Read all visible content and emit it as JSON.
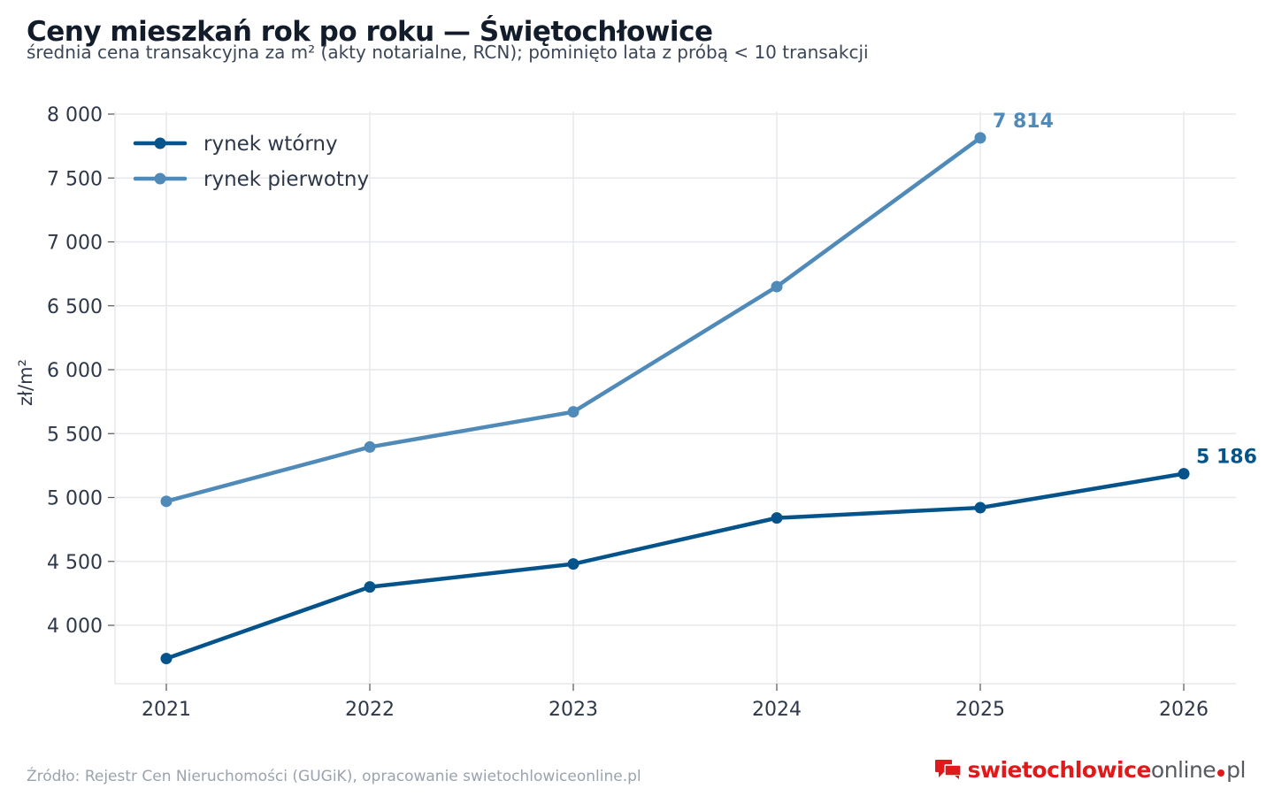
{
  "title": "Ceny mieszkań rok po roku — Świętochłowice",
  "subtitle": "średnia cena transakcyjna za m² (akty notarialne, RCN); pominięto lata z próbą < 10 transakcji",
  "source": "Źródło: Rejestr Cen Nieruchomości (GUGiK), opracowanie swietochlowiceonline.pl",
  "logo": {
    "red": "swietochlowice",
    "grey_1": "online",
    "grey_2": "pl"
  },
  "colors": {
    "wtorny": "#04538a",
    "pierwotny": "#4f8ab8",
    "grid": "#e6e8eb"
  },
  "chart_data": {
    "type": "line",
    "title": "Ceny mieszkań rok po roku — Świętochłowice",
    "subtitle": "średnia cena transakcyjna za m² (akty notarialne, RCN); pominięto lata z próbą < 10 transakcji",
    "xlabel": "",
    "ylabel": "zł/m²",
    "x": [
      2021,
      2022,
      2023,
      2024,
      2025,
      2026
    ],
    "x_tick_labels": [
      "2021",
      "2022",
      "2023",
      "2024",
      "2025",
      "2026"
    ],
    "ylim": [
      3600,
      8000
    ],
    "y_ticks": [
      4000,
      4500,
      5000,
      5500,
      6000,
      6500,
      7000,
      7500,
      8000
    ],
    "y_tick_labels": [
      "4 000",
      "4 500",
      "5 000",
      "5 500",
      "6 000",
      "6 500",
      "7 000",
      "7 500",
      "8 000"
    ],
    "grid": true,
    "legend_position": "top-left",
    "series": [
      {
        "name": "rynek wtórny",
        "color": "#04538a",
        "values": [
          3740,
          4300,
          4480,
          4840,
          4920,
          5186
        ],
        "end_label": "5 186"
      },
      {
        "name": "rynek pierwotny",
        "color": "#4f8ab8",
        "values": [
          4970,
          5395,
          5670,
          6650,
          7814,
          null
        ],
        "end_label": "7 814"
      }
    ]
  }
}
